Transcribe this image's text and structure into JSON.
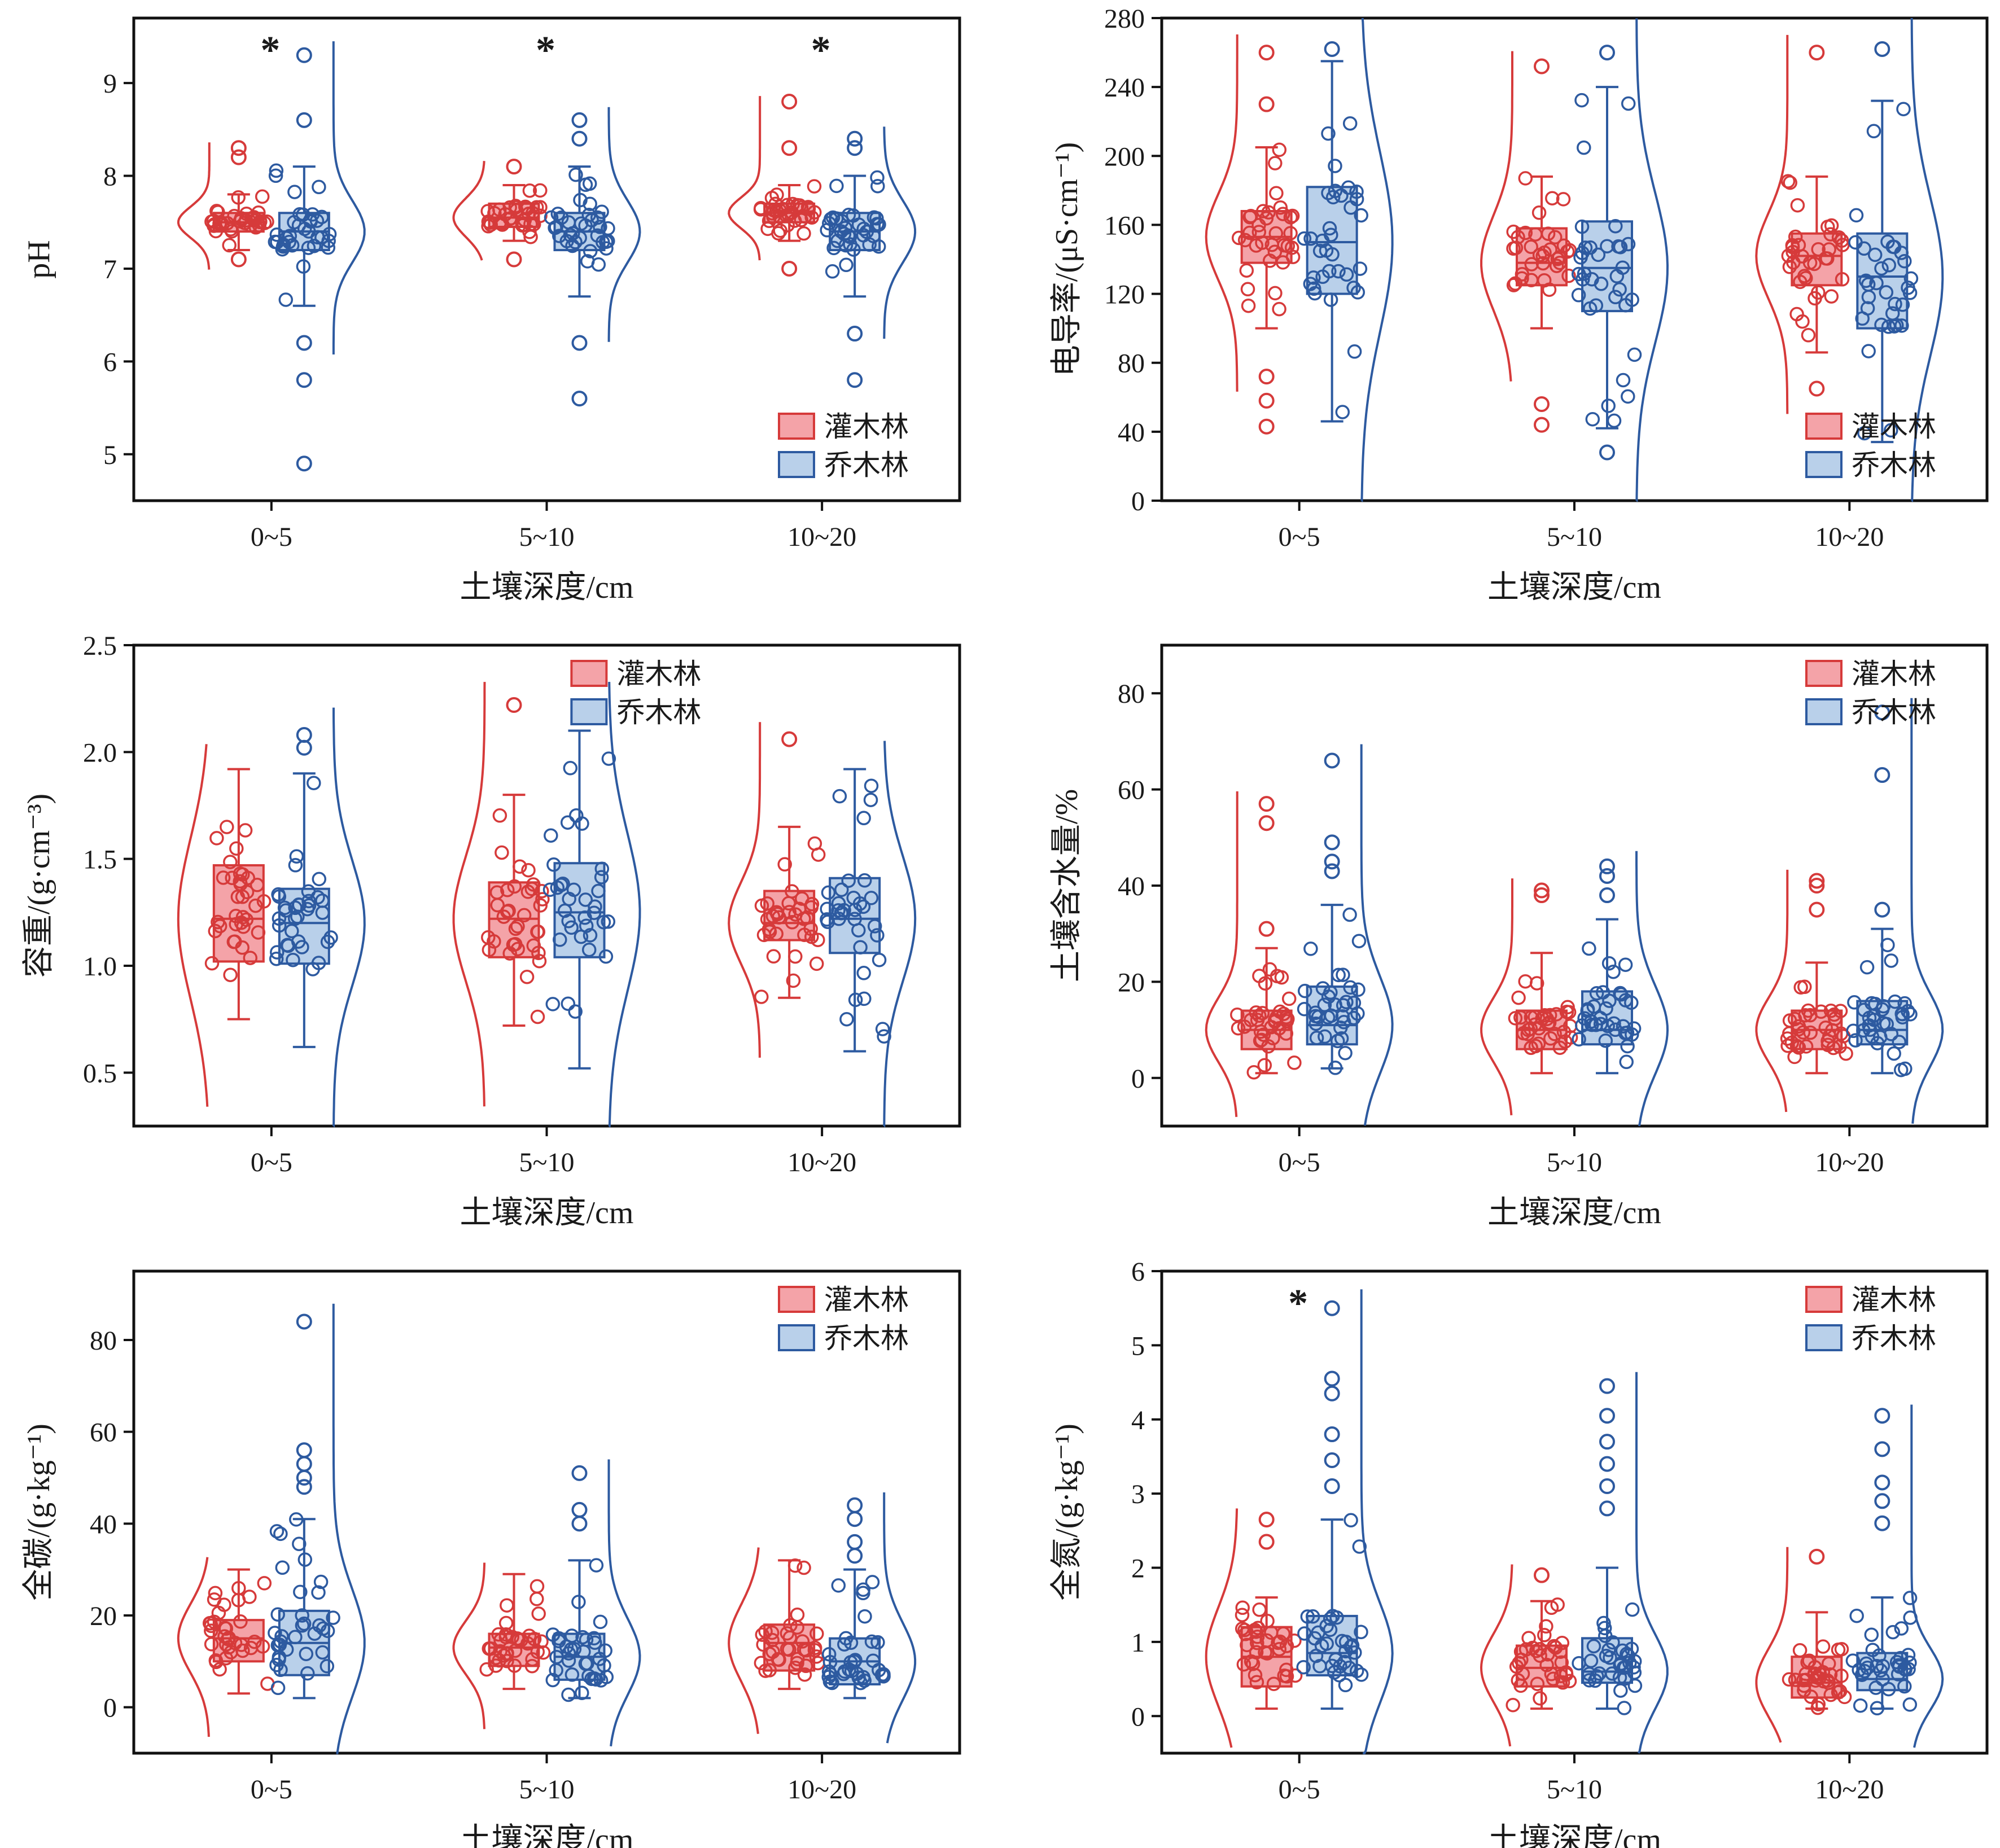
{
  "colors": {
    "shrub_edge": "#d63a3a",
    "shrub_fill": "#f4a3a8",
    "tree_edge": "#2d5aa0",
    "tree_fill": "#b9d0ea"
  },
  "legend": {
    "shrub": "灌木林",
    "tree": "乔木林"
  },
  "chart_data": [
    {
      "type": "box",
      "ylabel": "pH",
      "xlabel": "土壤深度/cm",
      "categories": [
        "0~5",
        "5~10",
        "10~20"
      ],
      "ylim": [
        4.5,
        9.7
      ],
      "yticks": [
        5,
        6,
        7,
        8,
        9
      ],
      "legend_position": "bottom-right",
      "significance": [
        "*",
        "*",
        "*"
      ],
      "series": [
        {
          "name": "灌木林",
          "boxes": [
            {
              "min": 7.2,
              "q1": 7.4,
              "median": 7.5,
              "q3": 7.6,
              "max": 7.8,
              "outliers": [
                8.3,
                8.2,
                7.1
              ]
            },
            {
              "min": 7.3,
              "q1": 7.45,
              "median": 7.55,
              "q3": 7.7,
              "max": 7.9,
              "outliers": [
                8.1,
                7.1
              ]
            },
            {
              "min": 7.3,
              "q1": 7.5,
              "median": 7.6,
              "q3": 7.7,
              "max": 7.9,
              "outliers": [
                8.8,
                8.3,
                7.0
              ]
            }
          ]
        },
        {
          "name": "乔木林",
          "boxes": [
            {
              "min": 6.6,
              "q1": 7.2,
              "median": 7.4,
              "q3": 7.6,
              "max": 8.1,
              "outliers": [
                9.3,
                8.6,
                6.2,
                5.8,
                4.9
              ]
            },
            {
              "min": 6.7,
              "q1": 7.2,
              "median": 7.4,
              "q3": 7.6,
              "max": 8.1,
              "outliers": [
                8.6,
                8.4,
                6.2,
                5.6
              ]
            },
            {
              "min": 6.7,
              "q1": 7.2,
              "median": 7.4,
              "q3": 7.6,
              "max": 8.0,
              "outliers": [
                8.4,
                8.3,
                6.3,
                5.8
              ]
            }
          ]
        }
      ]
    },
    {
      "type": "box",
      "ylabel": "电导率/(μS·cm⁻¹)",
      "xlabel": "土壤深度/cm",
      "categories": [
        "0~5",
        "5~10",
        "10~20"
      ],
      "ylim": [
        0,
        280
      ],
      "yticks": [
        0,
        40,
        80,
        120,
        160,
        200,
        240,
        280
      ],
      "legend_position": "bottom-right",
      "significance": [
        "",
        "",
        ""
      ],
      "series": [
        {
          "name": "灌木林",
          "boxes": [
            {
              "min": 100,
              "q1": 138,
              "median": 153,
              "q3": 168,
              "max": 205,
              "outliers": [
                260,
                230,
                72,
                58,
                43
              ]
            },
            {
              "min": 100,
              "q1": 125,
              "median": 138,
              "q3": 158,
              "max": 188,
              "outliers": [
                252,
                56,
                44
              ]
            },
            {
              "min": 86,
              "q1": 125,
              "median": 142,
              "q3": 155,
              "max": 188,
              "outliers": [
                260,
                65,
                46
              ]
            }
          ]
        },
        {
          "name": "乔木林",
          "boxes": [
            {
              "min": 46,
              "q1": 120,
              "median": 150,
              "q3": 182,
              "max": 255,
              "outliers": [
                262
              ]
            },
            {
              "min": 42,
              "q1": 110,
              "median": 135,
              "q3": 162,
              "max": 240,
              "outliers": [
                260,
                28
              ]
            },
            {
              "min": 34,
              "q1": 100,
              "median": 130,
              "q3": 155,
              "max": 232,
              "outliers": [
                262
              ]
            }
          ]
        }
      ]
    },
    {
      "type": "box",
      "ylabel": "容重/(g·cm⁻³)",
      "xlabel": "土壤深度/cm",
      "categories": [
        "0~5",
        "5~10",
        "10~20"
      ],
      "ylim": [
        0.25,
        2.5
      ],
      "yticks": [
        0.5,
        1.0,
        1.5,
        2.0,
        2.5
      ],
      "legend_position": "top-center",
      "significance": [
        "",
        "",
        ""
      ],
      "series": [
        {
          "name": "灌木林",
          "boxes": [
            {
              "min": 0.75,
              "q1": 1.02,
              "median": 1.22,
              "q3": 1.47,
              "max": 1.92,
              "outliers": []
            },
            {
              "min": 0.72,
              "q1": 1.04,
              "median": 1.22,
              "q3": 1.39,
              "max": 1.8,
              "outliers": [
                2.22
              ]
            },
            {
              "min": 0.85,
              "q1": 1.12,
              "median": 1.2,
              "q3": 1.35,
              "max": 1.65,
              "outliers": [
                2.06
              ]
            }
          ]
        },
        {
          "name": "乔木林",
          "boxes": [
            {
              "min": 0.62,
              "q1": 1.01,
              "median": 1.2,
              "q3": 1.36,
              "max": 1.9,
              "outliers": [
                2.08,
                2.02
              ]
            },
            {
              "min": 0.52,
              "q1": 1.04,
              "median": 1.25,
              "q3": 1.48,
              "max": 2.1,
              "outliers": [
                2.17
              ]
            },
            {
              "min": 0.6,
              "q1": 1.06,
              "median": 1.22,
              "q3": 1.41,
              "max": 1.92,
              "outliers": []
            }
          ]
        }
      ]
    },
    {
      "type": "box",
      "ylabel": "土壤含水量/%",
      "xlabel": "土壤深度/cm",
      "categories": [
        "0~5",
        "5~10",
        "10~20"
      ],
      "ylim": [
        -10,
        90
      ],
      "yticks": [
        0,
        20,
        40,
        60,
        80
      ],
      "legend_position": "top-right",
      "significance": [
        "",
        "",
        ""
      ],
      "series": [
        {
          "name": "灌木林",
          "boxes": [
            {
              "min": 1,
              "q1": 6,
              "median": 10,
              "q3": 14,
              "max": 27,
              "outliers": [
                57,
                53,
                31
              ]
            },
            {
              "min": 1,
              "q1": 6,
              "median": 10,
              "q3": 14,
              "max": 26,
              "outliers": [
                39,
                38
              ]
            },
            {
              "min": 1,
              "q1": 6,
              "median": 10,
              "q3": 14,
              "max": 24,
              "outliers": [
                41,
                40,
                35
              ]
            }
          ]
        },
        {
          "name": "乔木林",
          "boxes": [
            {
              "min": 2,
              "q1": 7,
              "median": 11,
              "q3": 19,
              "max": 36,
              "outliers": [
                66,
                49,
                45,
                43
              ]
            },
            {
              "min": 1,
              "q1": 7,
              "median": 10,
              "q3": 18,
              "max": 33,
              "outliers": [
                44,
                42,
                38
              ]
            },
            {
              "min": 1,
              "q1": 7,
              "median": 10,
              "q3": 16,
              "max": 31,
              "outliers": [
                76,
                63,
                35
              ]
            }
          ]
        }
      ]
    },
    {
      "type": "box",
      "ylabel": "全碳/(g·kg⁻¹)",
      "xlabel": "土壤深度/cm",
      "categories": [
        "0~5",
        "5~10",
        "10~20"
      ],
      "ylim": [
        -10,
        95
      ],
      "yticks": [
        0,
        20,
        40,
        60,
        80
      ],
      "legend_position": "top-right",
      "significance": [
        "",
        "",
        ""
      ],
      "series": [
        {
          "name": "灌木林",
          "boxes": [
            {
              "min": 3,
              "q1": 10,
              "median": 15,
              "q3": 19,
              "max": 30,
              "outliers": []
            },
            {
              "min": 4,
              "q1": 9,
              "median": 13,
              "q3": 16,
              "max": 29,
              "outliers": []
            },
            {
              "min": 4,
              "q1": 8,
              "median": 14,
              "q3": 18,
              "max": 32,
              "outliers": []
            }
          ]
        },
        {
          "name": "乔木林",
          "boxes": [
            {
              "min": 2,
              "q1": 7,
              "median": 14,
              "q3": 21,
              "max": 41,
              "outliers": [
                84,
                56,
                53,
                50,
                48
              ]
            },
            {
              "min": 2,
              "q1": 6,
              "median": 11,
              "q3": 16,
              "max": 32,
              "outliers": [
                51,
                43,
                40
              ]
            },
            {
              "min": 2,
              "q1": 5,
              "median": 10,
              "q3": 15,
              "max": 30,
              "outliers": [
                44,
                41,
                36,
                33
              ]
            }
          ]
        }
      ]
    },
    {
      "type": "box",
      "ylabel": "全氮/(g·kg⁻¹)",
      "xlabel": "土壤深度/cm",
      "categories": [
        "0~5",
        "5~10",
        "10~20"
      ],
      "ylim": [
        -0.5,
        6
      ],
      "yticks": [
        0,
        1,
        2,
        3,
        4,
        5,
        6
      ],
      "legend_position": "top-right",
      "significance": [
        "*",
        "",
        ""
      ],
      "series": [
        {
          "name": "灌木林",
          "boxes": [
            {
              "min": 0.1,
              "q1": 0.4,
              "median": 0.8,
              "q3": 1.2,
              "max": 1.6,
              "outliers": [
                2.65,
                2.35
              ]
            },
            {
              "min": 0.1,
              "q1": 0.4,
              "median": 0.65,
              "q3": 0.95,
              "max": 1.55,
              "outliers": [
                1.9
              ]
            },
            {
              "min": 0.1,
              "q1": 0.25,
              "median": 0.45,
              "q3": 0.8,
              "max": 1.4,
              "outliers": [
                2.15
              ]
            }
          ]
        },
        {
          "name": "乔木林",
          "boxes": [
            {
              "min": 0.1,
              "q1": 0.55,
              "median": 0.85,
              "q3": 1.35,
              "max": 2.65,
              "outliers": [
                5.5,
                4.55,
                4.35,
                3.8,
                3.45,
                3.1
              ]
            },
            {
              "min": 0.1,
              "q1": 0.45,
              "median": 0.6,
              "q3": 1.05,
              "max": 2.0,
              "outliers": [
                4.45,
                4.05,
                3.7,
                3.4,
                3.1,
                2.8
              ]
            },
            {
              "min": 0.1,
              "q1": 0.35,
              "median": 0.5,
              "q3": 0.85,
              "max": 1.6,
              "outliers": [
                4.05,
                3.6,
                3.15,
                2.9,
                2.6
              ]
            }
          ]
        }
      ]
    }
  ]
}
